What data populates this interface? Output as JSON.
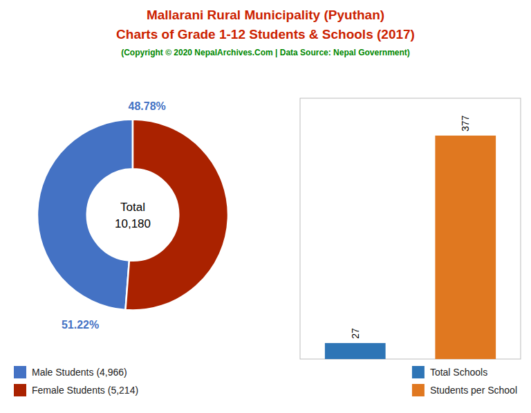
{
  "chart_data": [
    {
      "type": "donut",
      "title": [
        "Mallarani Rural Municipality (Pyuthan)",
        "Charts of Grade 1-12 Students & Schools (2017)"
      ],
      "subtitle": "(Copyright © 2020 NepalArchives.Com | Data Source: Nepal Government)",
      "categories": [
        "Male Students (4,966)",
        "Female Students (5,214)"
      ],
      "values": [
        48.78,
        51.22
      ],
      "value_labels": [
        "48.78%",
        "51.22%"
      ],
      "colors": [
        "#4472c4",
        "#aa2200"
      ],
      "annotations": [
        "Total",
        "10,180"
      ],
      "data_labels": true,
      "legend": "lower left"
    },
    {
      "type": "bar",
      "categories": [
        "Total Schools",
        "Students per School"
      ],
      "values": [
        27,
        377
      ],
      "colors": [
        "#2e75b6",
        "#e07820"
      ],
      "ylim": [
        0,
        440
      ],
      "tick_labels": false,
      "data_labels": true,
      "legend": "lower right"
    }
  ]
}
